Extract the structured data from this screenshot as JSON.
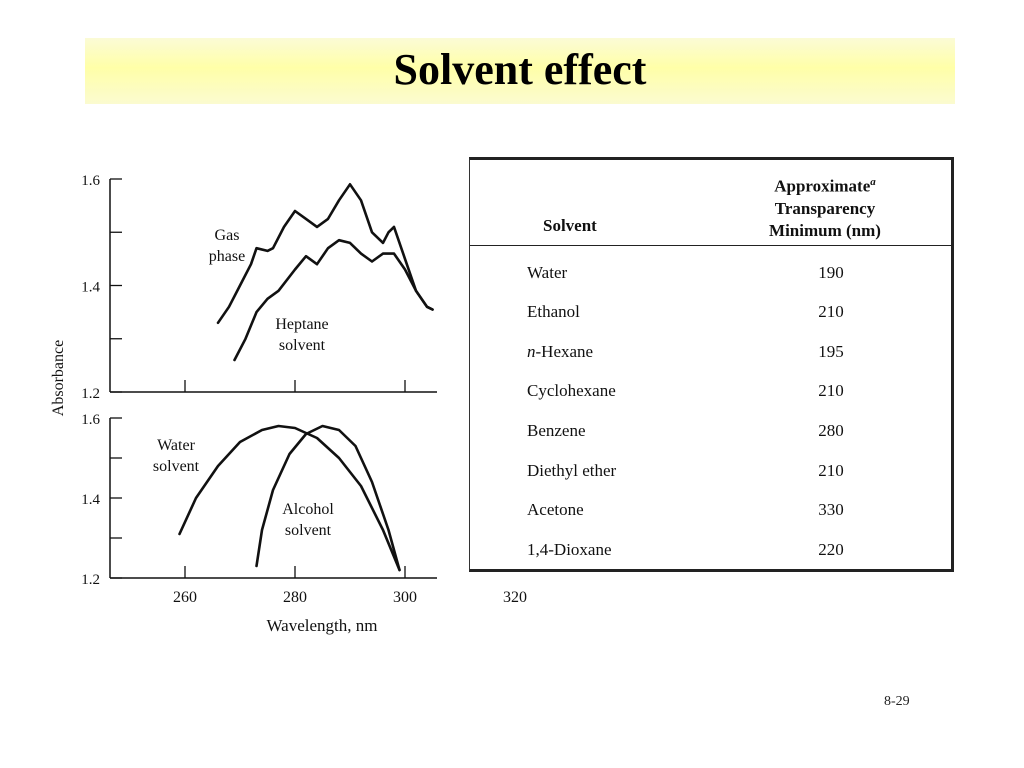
{
  "slide": {
    "title": "Solvent effect",
    "page_number": "8-29"
  },
  "chart_data": [
    {
      "type": "line",
      "panel": "top",
      "xlim": [
        250,
        320
      ],
      "ylim": [
        1.2,
        1.6
      ],
      "y_ticks": [
        "1.6",
        "1.4",
        "1.2"
      ],
      "ylabel": "Absorbance",
      "series": [
        {
          "name": "Gas phase",
          "label_lines": [
            "Gas",
            "phase"
          ],
          "points": [
            [
              266,
              1.33
            ],
            [
              268,
              1.36
            ],
            [
              270,
              1.4
            ],
            [
              272,
              1.44
            ],
            [
              273,
              1.47
            ],
            [
              275,
              1.465
            ],
            [
              276,
              1.47
            ],
            [
              278,
              1.51
            ],
            [
              280,
              1.54
            ],
            [
              282,
              1.525
            ],
            [
              284,
              1.51
            ],
            [
              286,
              1.525
            ],
            [
              288,
              1.56
            ],
            [
              290,
              1.59
            ],
            [
              292,
              1.56
            ],
            [
              294,
              1.5
            ],
            [
              296,
              1.48
            ],
            [
              297,
              1.5
            ],
            [
              298,
              1.51
            ],
            [
              300,
              1.45
            ],
            [
              302,
              1.39
            ],
            [
              304,
              1.36
            ],
            [
              305,
              1.355
            ]
          ]
        },
        {
          "name": "Heptane solvent",
          "label_lines": [
            "Heptane",
            "solvent"
          ],
          "points": [
            [
              269,
              1.26
            ],
            [
              271,
              1.3
            ],
            [
              273,
              1.35
            ],
            [
              275,
              1.375
            ],
            [
              277,
              1.39
            ],
            [
              280,
              1.43
            ],
            [
              282,
              1.455
            ],
            [
              284,
              1.44
            ],
            [
              286,
              1.47
            ],
            [
              288,
              1.485
            ],
            [
              290,
              1.48
            ],
            [
              292,
              1.46
            ],
            [
              294,
              1.445
            ],
            [
              296,
              1.46
            ],
            [
              298,
              1.46
            ],
            [
              300,
              1.43
            ],
            [
              302,
              1.39
            ],
            [
              304,
              1.36
            ],
            [
              305,
              1.355
            ]
          ]
        }
      ]
    },
    {
      "type": "line",
      "panel": "bottom",
      "xlim": [
        250,
        320
      ],
      "ylim": [
        1.2,
        1.6
      ],
      "x_ticks": [
        "260",
        "280",
        "300",
        "320"
      ],
      "y_ticks": [
        "1.6",
        "1.4",
        "1.2"
      ],
      "xlabel": "Wavelength, nm",
      "series": [
        {
          "name": "Water solvent",
          "label_lines": [
            "Water",
            "solvent"
          ],
          "points": [
            [
              259,
              1.31
            ],
            [
              262,
              1.4
            ],
            [
              266,
              1.48
            ],
            [
              270,
              1.54
            ],
            [
              274,
              1.57
            ],
            [
              277,
              1.58
            ],
            [
              280,
              1.575
            ],
            [
              284,
              1.55
            ],
            [
              288,
              1.5
            ],
            [
              292,
              1.43
            ],
            [
              296,
              1.32
            ],
            [
              299,
              1.22
            ]
          ]
        },
        {
          "name": "Alcohol solvent",
          "label_lines": [
            "Alcohol",
            "solvent"
          ],
          "points": [
            [
              273,
              1.23
            ],
            [
              274,
              1.32
            ],
            [
              276,
              1.42
            ],
            [
              279,
              1.51
            ],
            [
              282,
              1.56
            ],
            [
              285,
              1.58
            ],
            [
              288,
              1.57
            ],
            [
              291,
              1.53
            ],
            [
              294,
              1.44
            ],
            [
              297,
              1.32
            ],
            [
              299,
              1.22
            ]
          ]
        }
      ]
    }
  ],
  "table": {
    "header_solvent": "Solvent",
    "header_min_line1": "Approximate",
    "header_min_sup": "a",
    "header_min_line2": "Transparency",
    "header_min_line3": "Minimum (nm)",
    "rows": [
      {
        "prefix": "",
        "name": "Water",
        "value": "190"
      },
      {
        "prefix": "",
        "name": "Ethanol",
        "value": "210"
      },
      {
        "prefix": "n",
        "name": "-Hexane",
        "value": "195"
      },
      {
        "prefix": "",
        "name": "Cyclohexane",
        "value": "210"
      },
      {
        "prefix": "",
        "name": "Benzene",
        "value": "280"
      },
      {
        "prefix": "",
        "name": "Diethyl ether",
        "value": "210"
      },
      {
        "prefix": "",
        "name": "Acetone",
        "value": "330"
      },
      {
        "prefix": "",
        "name": "1,4-Dioxane",
        "value": "220"
      }
    ]
  }
}
